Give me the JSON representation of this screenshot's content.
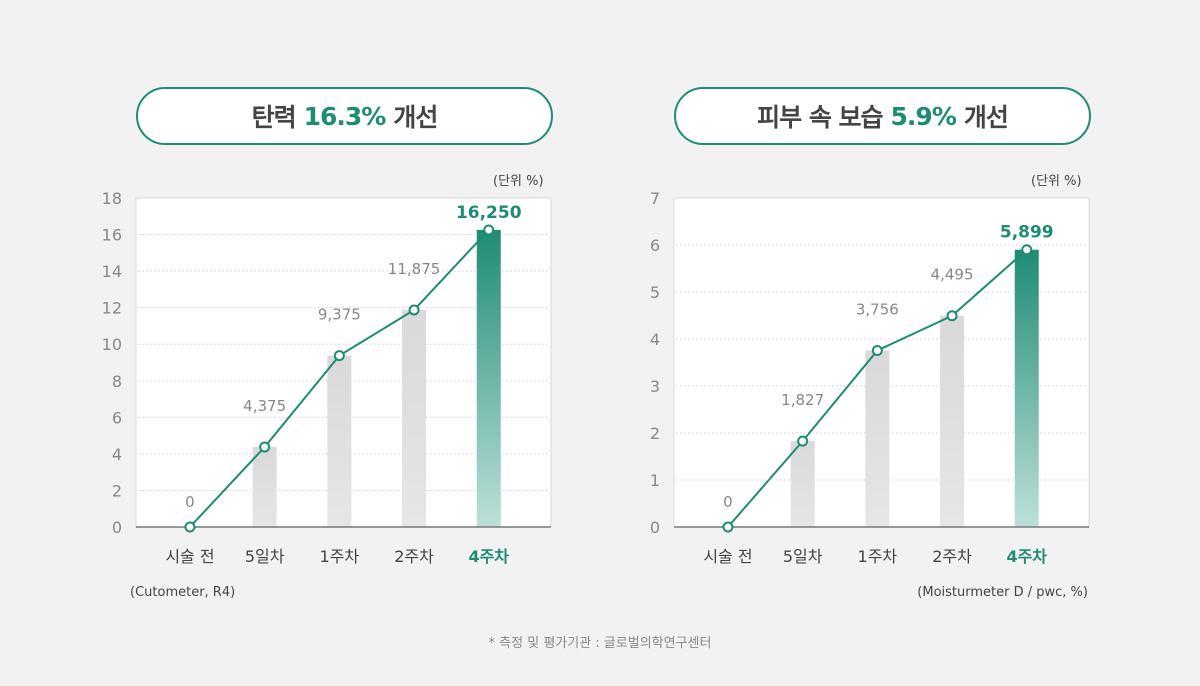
{
  "colors": {
    "accent": "#1e8c74",
    "accent_light": "#b9ddd7",
    "bar_gray": "#dcdcdc",
    "text_dark": "#444444",
    "text_gray": "#888888"
  },
  "footnote": "* 측정 및 평가기관 : 글로벌의학연구센터",
  "chart_data": [
    {
      "type": "bar",
      "title_prefix": "탄력",
      "title_highlight": "16.3%",
      "title_suffix": "개선",
      "unit_label": "(단위 %)",
      "source": "(Cutometer, R4)",
      "categories": [
        "시술 전",
        "5일차",
        "1주차",
        "2주차",
        "4주차"
      ],
      "values": [
        0,
        4.375,
        9.375,
        11.875,
        16.25
      ],
      "data_labels": [
        "0",
        "4,375",
        "9,375",
        "11,875",
        "16,250"
      ],
      "highlight_index": 4,
      "ylim": [
        0,
        18
      ],
      "yticks": [
        0,
        2,
        4,
        6,
        8,
        10,
        12,
        14,
        16,
        18
      ],
      "grid": true,
      "overlay_line": true
    },
    {
      "type": "bar",
      "title_prefix": "피부 속 보습",
      "title_highlight": "5.9%",
      "title_suffix": "개선",
      "unit_label": "(단위 %)",
      "source": "(Moisturmeter D / pwc, %)",
      "categories": [
        "시술 전",
        "5일차",
        "1주차",
        "2주차",
        "4주차"
      ],
      "values": [
        0,
        1.827,
        3.756,
        4.495,
        5.899
      ],
      "data_labels": [
        "0",
        "1,827",
        "3,756",
        "4,495",
        "5,899"
      ],
      "highlight_index": 4,
      "ylim": [
        0,
        7
      ],
      "yticks": [
        0,
        1,
        2,
        3,
        4,
        5,
        6,
        7
      ],
      "grid": true,
      "overlay_line": true
    }
  ]
}
